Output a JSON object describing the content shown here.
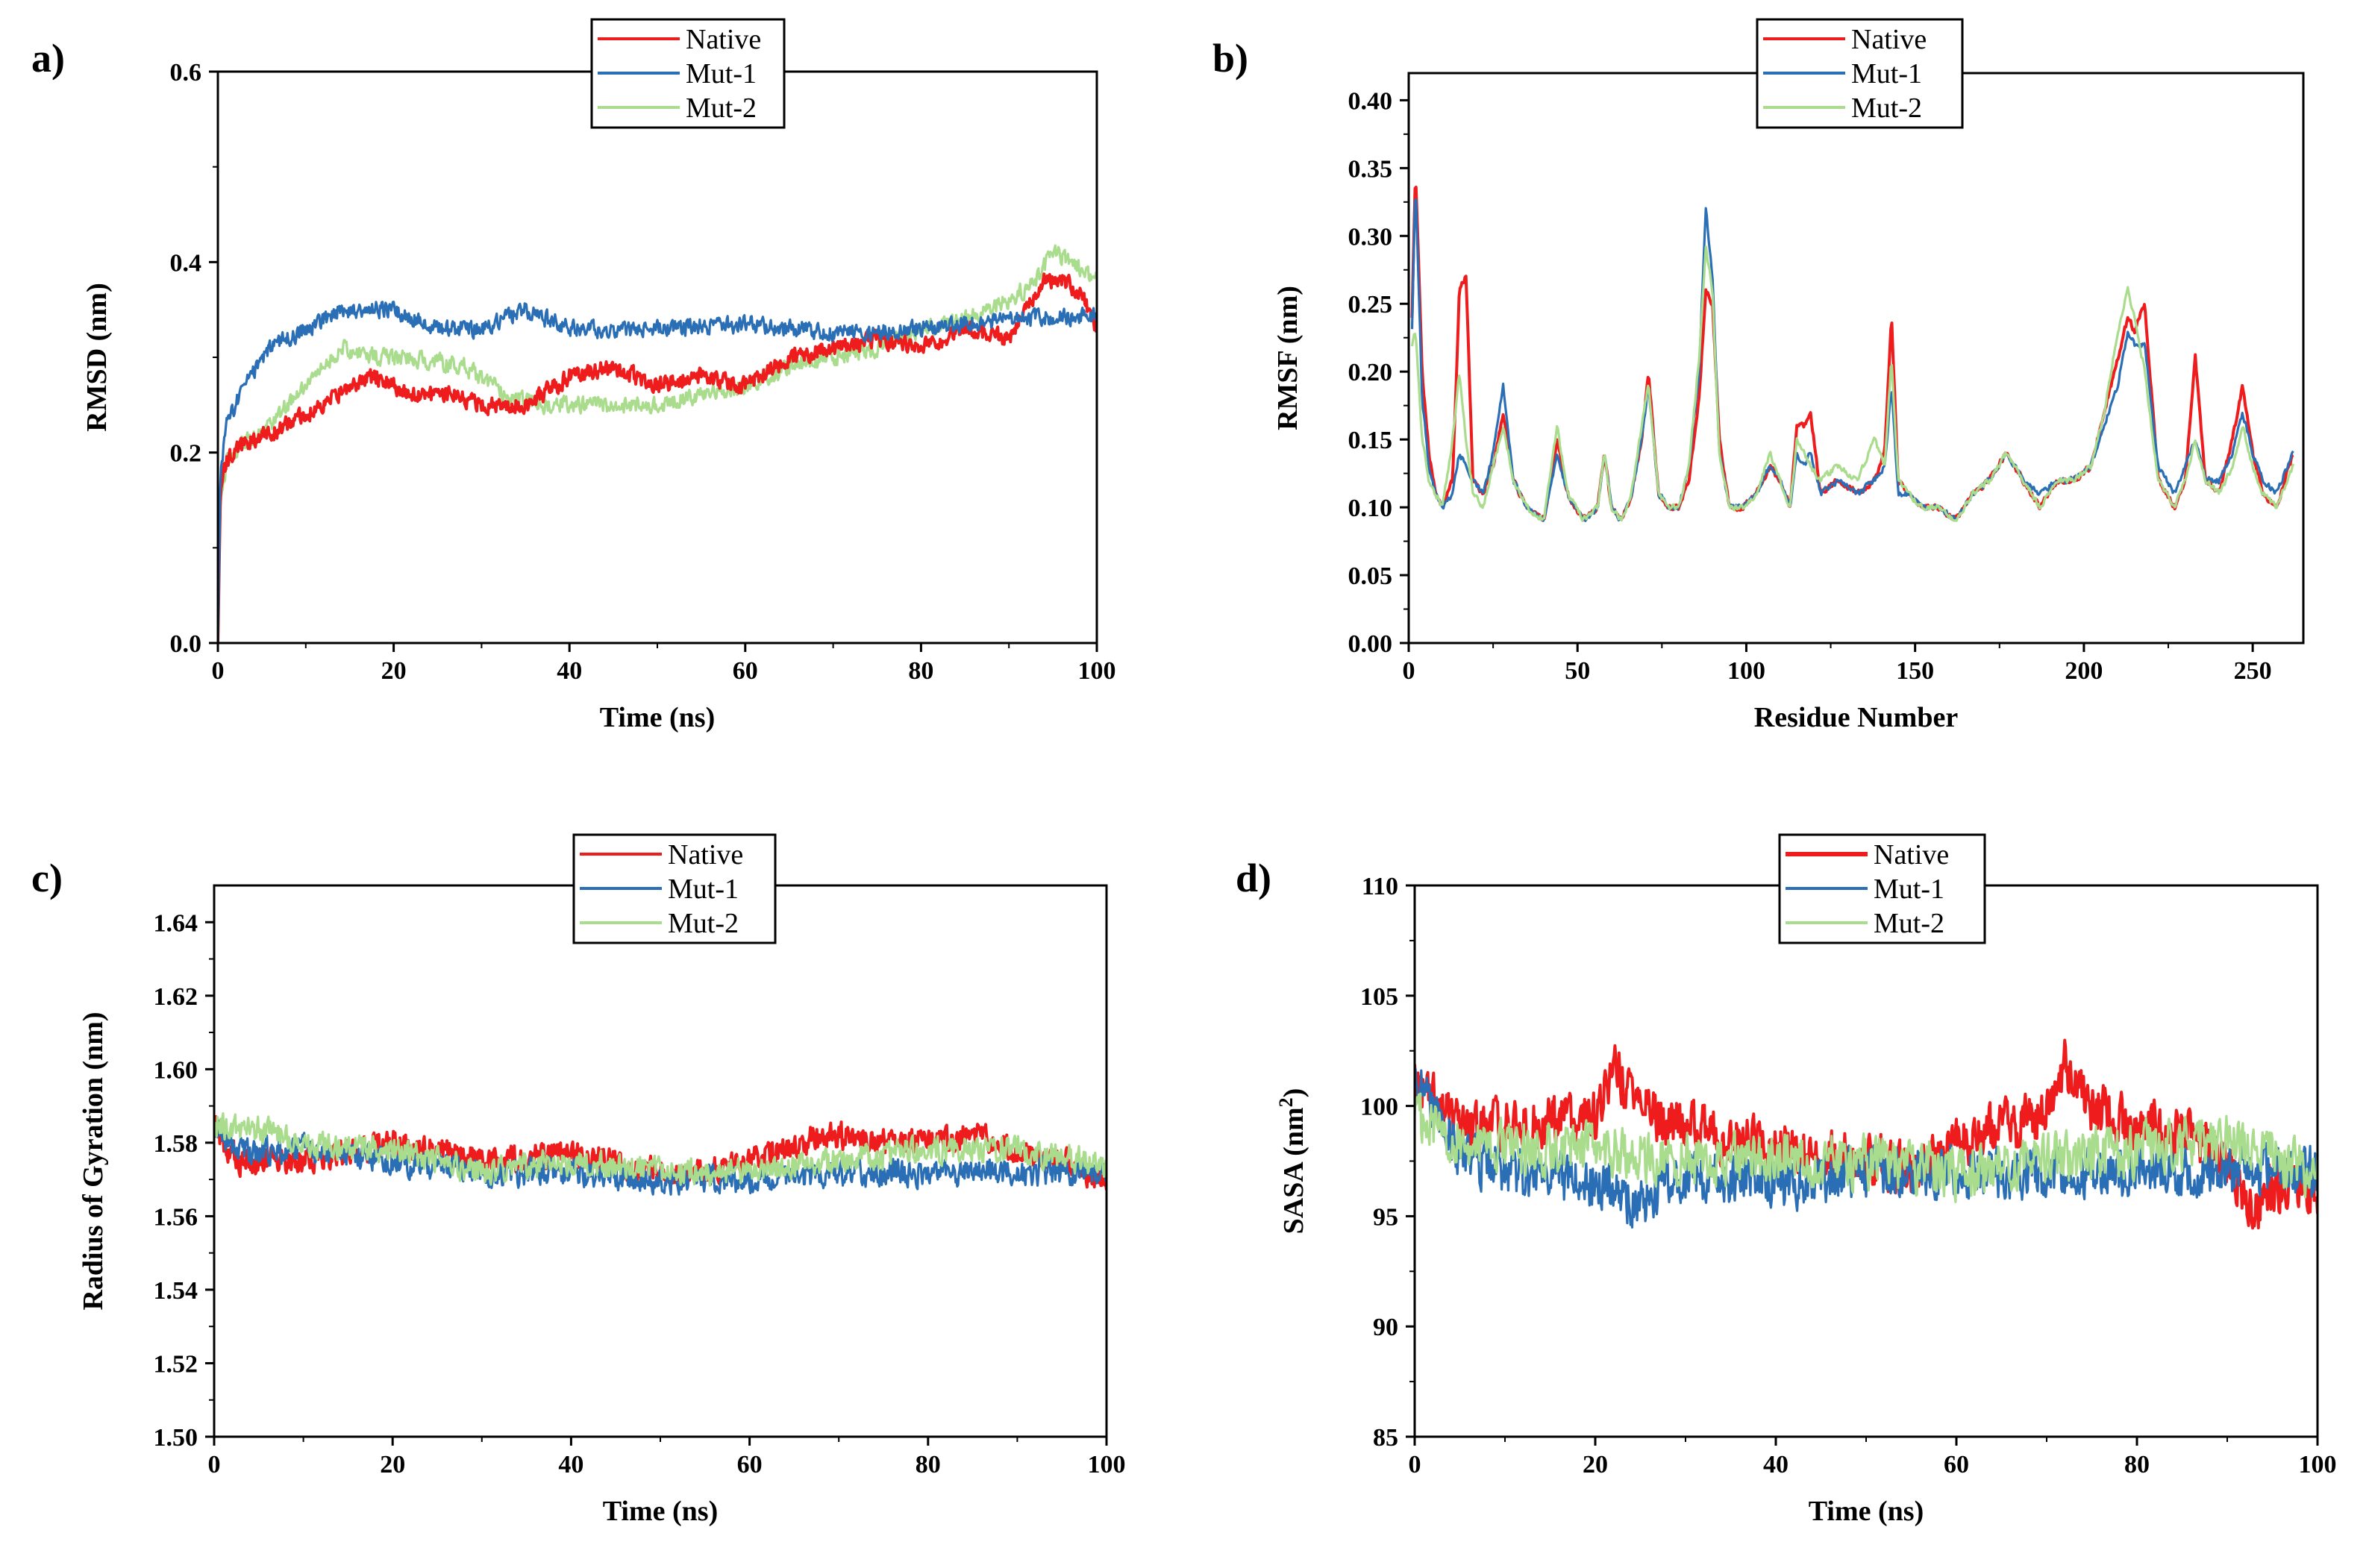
{
  "colors": {
    "Native": "#ee1c1c",
    "Mut-1": "#2a6fb5",
    "Mut-2": "#a9dc8c"
  },
  "chart_data": [
    {
      "panel_label": "a)",
      "type": "line",
      "xlabel": "Time (ns)",
      "ylabel": "RMSD (nm)",
      "xlim": [
        0,
        100
      ],
      "ylim": [
        0,
        0.6
      ],
      "xticks": [
        "0",
        "20",
        "40",
        "60",
        "80",
        "100"
      ],
      "yticks": [
        "0.0",
        "0.2",
        "0.4",
        "0.6"
      ],
      "legend": "top-center",
      "noise": 0.012,
      "series": [
        {
          "name": "Native",
          "x": [
            0,
            0.3,
            1,
            3,
            6,
            10,
            15,
            18,
            22,
            27,
            30,
            35,
            40,
            45,
            50,
            55,
            60,
            65,
            70,
            75,
            80,
            85,
            90,
            92,
            94,
            96,
            98,
            100
          ],
          "y": [
            0.0,
            0.16,
            0.19,
            0.21,
            0.22,
            0.24,
            0.27,
            0.28,
            0.26,
            0.26,
            0.25,
            0.25,
            0.28,
            0.29,
            0.27,
            0.28,
            0.27,
            0.3,
            0.31,
            0.32,
            0.31,
            0.33,
            0.32,
            0.35,
            0.38,
            0.38,
            0.37,
            0.33
          ]
        },
        {
          "name": "Mut-1",
          "x": [
            0,
            0.3,
            1,
            3,
            6,
            10,
            14,
            20,
            25,
            30,
            35,
            40,
            50,
            60,
            70,
            80,
            90,
            100
          ],
          "y": [
            0.0,
            0.18,
            0.23,
            0.27,
            0.31,
            0.33,
            0.35,
            0.35,
            0.33,
            0.33,
            0.35,
            0.33,
            0.33,
            0.335,
            0.325,
            0.33,
            0.34,
            0.345
          ]
        },
        {
          "name": "Mut-2",
          "x": [
            0,
            0.3,
            1,
            3,
            6,
            10,
            14,
            18,
            22,
            28,
            33,
            37,
            40,
            45,
            50,
            55,
            60,
            65,
            70,
            75,
            80,
            85,
            90,
            93,
            95,
            97,
            100
          ],
          "y": [
            0.0,
            0.15,
            0.19,
            0.21,
            0.23,
            0.27,
            0.31,
            0.3,
            0.3,
            0.29,
            0.26,
            0.25,
            0.25,
            0.25,
            0.25,
            0.26,
            0.27,
            0.29,
            0.3,
            0.31,
            0.33,
            0.34,
            0.36,
            0.38,
            0.41,
            0.4,
            0.38
          ]
        }
      ]
    },
    {
      "panel_label": "b)",
      "type": "line",
      "xlabel": "Residue Number",
      "ylabel": "RMSF (nm)",
      "xlim": [
        0,
        265
      ],
      "ylim": [
        0,
        0.42
      ],
      "xticks": [
        "0",
        "50",
        "100",
        "150",
        "200",
        "250"
      ],
      "yticks": [
        "0.00",
        "0.05",
        "0.10",
        "0.15",
        "0.20",
        "0.25",
        "0.30",
        "0.35",
        "0.40"
      ],
      "legend": "top-center",
      "noise": 0.006,
      "series": [
        {
          "name": "Native",
          "x": [
            1,
            2,
            4,
            6,
            8,
            10,
            13,
            15,
            17,
            19,
            22,
            25,
            28,
            31,
            35,
            40,
            44,
            47,
            52,
            56,
            58,
            60,
            63,
            66,
            69,
            71,
            74,
            77,
            80,
            83,
            86,
            88,
            90,
            92,
            95,
            99,
            103,
            107,
            110,
            113,
            115,
            117,
            119,
            122,
            127,
            133,
            138,
            141,
            143,
            145,
            148,
            152,
            157,
            162,
            167,
            172,
            177,
            182,
            187,
            192,
            197,
            202,
            206,
            210,
            213,
            215,
            218,
            222,
            227,
            230,
            233,
            236,
            240,
            244,
            247,
            250,
            253,
            257,
            262
          ],
          "y": [
            0.24,
            0.35,
            0.2,
            0.14,
            0.11,
            0.1,
            0.12,
            0.26,
            0.27,
            0.12,
            0.11,
            0.13,
            0.17,
            0.12,
            0.1,
            0.09,
            0.15,
            0.11,
            0.09,
            0.1,
            0.14,
            0.1,
            0.09,
            0.11,
            0.15,
            0.2,
            0.11,
            0.1,
            0.1,
            0.12,
            0.18,
            0.26,
            0.25,
            0.15,
            0.1,
            0.1,
            0.11,
            0.13,
            0.12,
            0.1,
            0.16,
            0.16,
            0.17,
            0.11,
            0.12,
            0.11,
            0.12,
            0.14,
            0.24,
            0.12,
            0.11,
            0.1,
            0.1,
            0.09,
            0.11,
            0.12,
            0.14,
            0.12,
            0.1,
            0.12,
            0.12,
            0.13,
            0.17,
            0.21,
            0.24,
            0.23,
            0.25,
            0.12,
            0.1,
            0.12,
            0.21,
            0.12,
            0.11,
            0.15,
            0.19,
            0.14,
            0.11,
            0.1,
            0.14
          ]
        },
        {
          "name": "Mut-1",
          "x": [
            1,
            2,
            4,
            6,
            8,
            10,
            13,
            15,
            17,
            19,
            22,
            25,
            28,
            31,
            35,
            40,
            44,
            47,
            52,
            56,
            58,
            60,
            63,
            66,
            69,
            71,
            74,
            77,
            80,
            83,
            86,
            88,
            90,
            92,
            95,
            99,
            103,
            107,
            110,
            113,
            115,
            117,
            119,
            122,
            127,
            133,
            138,
            141,
            143,
            145,
            148,
            152,
            157,
            162,
            167,
            172,
            177,
            182,
            187,
            192,
            197,
            202,
            206,
            210,
            213,
            215,
            218,
            222,
            227,
            230,
            233,
            236,
            240,
            244,
            247,
            250,
            253,
            257,
            262
          ],
          "y": [
            0.23,
            0.34,
            0.18,
            0.13,
            0.11,
            0.1,
            0.11,
            0.14,
            0.13,
            0.12,
            0.11,
            0.14,
            0.19,
            0.12,
            0.1,
            0.09,
            0.14,
            0.11,
            0.09,
            0.1,
            0.14,
            0.1,
            0.09,
            0.11,
            0.15,
            0.19,
            0.11,
            0.1,
            0.1,
            0.13,
            0.2,
            0.32,
            0.27,
            0.14,
            0.1,
            0.1,
            0.11,
            0.13,
            0.12,
            0.1,
            0.14,
            0.13,
            0.14,
            0.11,
            0.12,
            0.11,
            0.12,
            0.13,
            0.19,
            0.11,
            0.11,
            0.1,
            0.1,
            0.09,
            0.11,
            0.12,
            0.14,
            0.12,
            0.11,
            0.12,
            0.12,
            0.13,
            0.16,
            0.19,
            0.23,
            0.22,
            0.22,
            0.13,
            0.11,
            0.13,
            0.15,
            0.12,
            0.12,
            0.14,
            0.17,
            0.14,
            0.12,
            0.11,
            0.14
          ]
        },
        {
          "name": "Mut-2",
          "x": [
            1,
            2,
            4,
            6,
            8,
            10,
            13,
            15,
            17,
            19,
            22,
            25,
            28,
            31,
            35,
            40,
            44,
            47,
            52,
            56,
            58,
            60,
            63,
            66,
            69,
            71,
            74,
            77,
            80,
            83,
            86,
            88,
            90,
            92,
            95,
            99,
            103,
            107,
            110,
            113,
            115,
            117,
            119,
            122,
            127,
            133,
            138,
            141,
            143,
            145,
            148,
            152,
            157,
            162,
            167,
            172,
            177,
            182,
            187,
            192,
            197,
            202,
            206,
            210,
            213,
            215,
            218,
            222,
            227,
            230,
            233,
            236,
            240,
            244,
            247,
            250,
            253,
            257,
            262
          ],
          "y": [
            0.22,
            0.23,
            0.15,
            0.12,
            0.11,
            0.1,
            0.15,
            0.2,
            0.15,
            0.11,
            0.1,
            0.13,
            0.16,
            0.12,
            0.1,
            0.09,
            0.16,
            0.11,
            0.09,
            0.1,
            0.14,
            0.1,
            0.09,
            0.11,
            0.16,
            0.19,
            0.11,
            0.1,
            0.1,
            0.13,
            0.21,
            0.29,
            0.26,
            0.14,
            0.1,
            0.1,
            0.11,
            0.14,
            0.12,
            0.1,
            0.15,
            0.14,
            0.13,
            0.12,
            0.13,
            0.12,
            0.15,
            0.13,
            0.21,
            0.12,
            0.11,
            0.1,
            0.1,
            0.09,
            0.11,
            0.12,
            0.14,
            0.12,
            0.1,
            0.12,
            0.12,
            0.13,
            0.17,
            0.23,
            0.26,
            0.24,
            0.2,
            0.12,
            0.1,
            0.12,
            0.15,
            0.12,
            0.11,
            0.13,
            0.16,
            0.13,
            0.11,
            0.1,
            0.13
          ]
        }
      ]
    },
    {
      "panel_label": "c)",
      "type": "line",
      "xlabel": "Time (ns)",
      "ylabel": "Radius of Gyration (nm)",
      "xlim": [
        0,
        100
      ],
      "ylim": [
        1.5,
        1.65
      ],
      "xticks": [
        "0",
        "20",
        "40",
        "60",
        "80",
        "100"
      ],
      "yticks": [
        "1.50",
        "1.52",
        "1.54",
        "1.56",
        "1.58",
        "1.60",
        "1.62",
        "1.64"
      ],
      "legend": "top-center",
      "noise": 0.005,
      "series": [
        {
          "name": "Native",
          "x": [
            0,
            1,
            3,
            10,
            20,
            30,
            40,
            50,
            55,
            60,
            65,
            70,
            75,
            80,
            85,
            90,
            95,
            100
          ],
          "y": [
            1.586,
            1.58,
            1.575,
            1.575,
            1.58,
            1.575,
            1.577,
            1.572,
            1.572,
            1.575,
            1.58,
            1.582,
            1.58,
            1.58,
            1.582,
            1.578,
            1.575,
            1.57
          ]
        },
        {
          "name": "Mut-1",
          "x": [
            0,
            1,
            3,
            10,
            20,
            30,
            40,
            50,
            60,
            70,
            80,
            90,
            100
          ],
          "y": [
            1.585,
            1.582,
            1.578,
            1.578,
            1.575,
            1.572,
            1.572,
            1.57,
            1.57,
            1.572,
            1.572,
            1.572,
            1.572
          ]
        },
        {
          "name": "Mut-2",
          "x": [
            0,
            1,
            5,
            10,
            20,
            30,
            40,
            50,
            60,
            70,
            80,
            90,
            100
          ],
          "y": [
            1.586,
            1.584,
            1.584,
            1.58,
            1.578,
            1.572,
            1.575,
            1.572,
            1.572,
            1.575,
            1.578,
            1.578,
            1.574
          ]
        }
      ]
    },
    {
      "panel_label": "d)",
      "type": "line",
      "xlabel": "Time (ns)",
      "ylabel": "SASA (nm",
      "ylabel_superscript": "2",
      "ylabel_suffix": ")",
      "xlim": [
        0,
        100
      ],
      "ylim": [
        85,
        110
      ],
      "xticks": [
        "0",
        "20",
        "40",
        "60",
        "80",
        "100"
      ],
      "yticks": [
        "85",
        "90",
        "95",
        "100",
        "105",
        "110"
      ],
      "legend": "top-center",
      "noise": 1.6,
      "series": [
        {
          "name": "Native",
          "x": [
            0,
            5,
            10,
            20,
            22,
            25,
            30,
            40,
            50,
            55,
            60,
            65,
            70,
            72,
            75,
            80,
            85,
            90,
            93,
            95,
            100
          ],
          "y": [
            101,
            99,
            99,
            99.5,
            102,
            100,
            99,
            98,
            97.5,
            97,
            98.5,
            99,
            99.5,
            102,
            100,
            99,
            99,
            97.5,
            95,
            96.5,
            96
          ]
        },
        {
          "name": "Mut-1",
          "x": [
            0,
            5,
            10,
            20,
            25,
            30,
            40,
            50,
            60,
            70,
            80,
            90,
            100
          ],
          "y": [
            101,
            98,
            97,
            96.5,
            95.5,
            97,
            96.5,
            97,
            97,
            97,
            97,
            97,
            97
          ]
        },
        {
          "name": "Mut-2",
          "x": [
            0,
            5,
            10,
            20,
            30,
            40,
            50,
            60,
            70,
            80,
            90,
            100
          ],
          "y": [
            99.5,
            98.5,
            98,
            98,
            97.5,
            97.5,
            97.5,
            97,
            97.5,
            98,
            98.5,
            97
          ]
        }
      ]
    }
  ]
}
